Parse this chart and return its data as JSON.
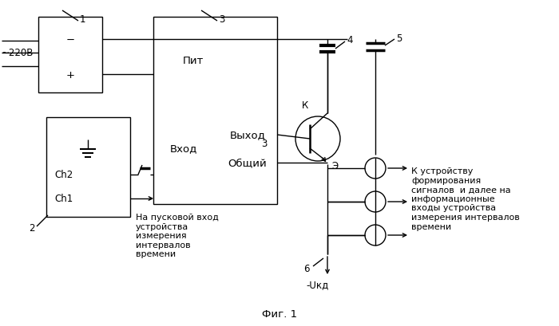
{
  "bg_color": "#ffffff",
  "line_color": "#000000",
  "font_size": 8.5,
  "title": "Фиг. 1",
  "labels": {
    "ac": "~220В",
    "n1": "1",
    "n2": "2",
    "n3": "3",
    "n3b": "3",
    "n4": "4",
    "n5": "5",
    "n6": "6",
    "K": "К",
    "E": "Э",
    "pit": "Пит",
    "vkhod": "Вход",
    "vykhod": "Выход",
    "obshiy": "Общий",
    "Ch1": "Ch1",
    "Ch2": "Ch2",
    "minus": "−",
    "plus": "+",
    "text_ch1": "На пусковой вход\nустройства\nизмерения\nинтервалов\nвремени",
    "text_right": "К устройству\nформирования\nсигналов  и далее на\nинформационные\nвходы устройства\nизмерения интервалов\nвремени",
    "ukd": "-Uкд"
  }
}
